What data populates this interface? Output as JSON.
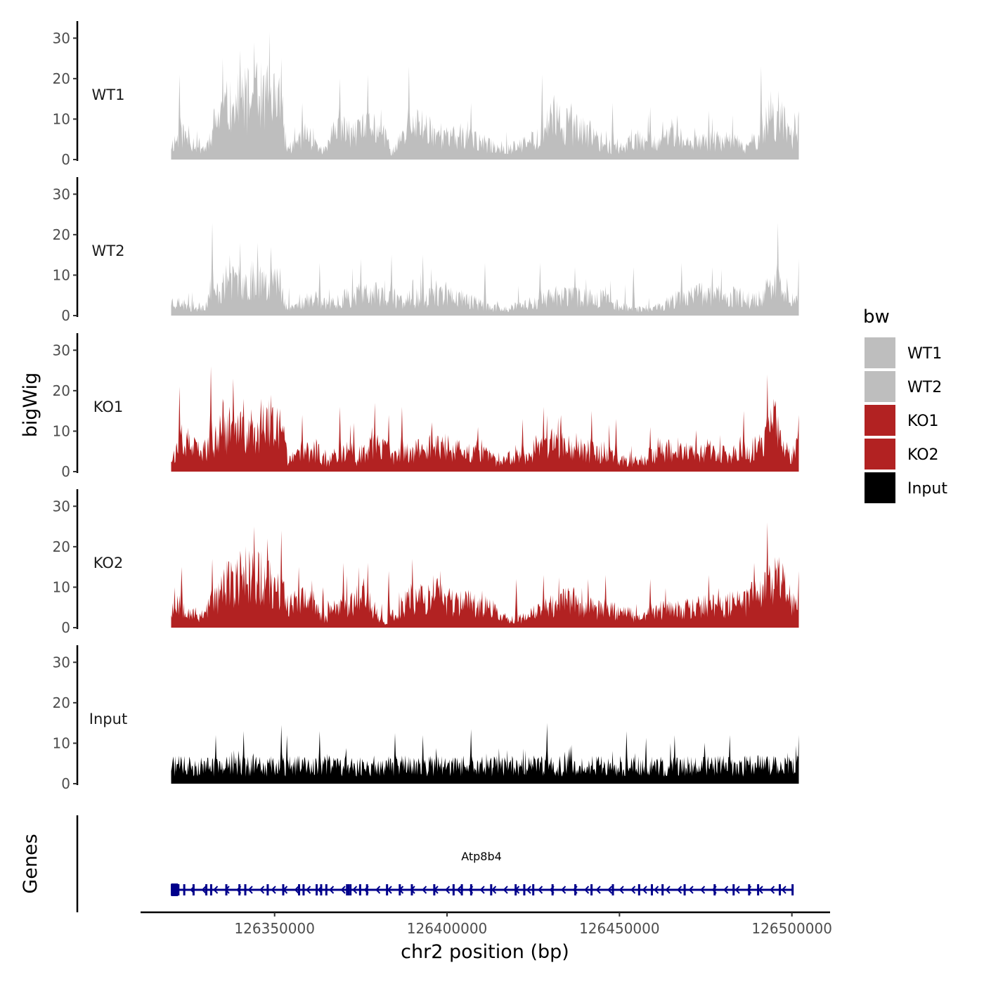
{
  "chart_data": {
    "type": "area",
    "title": "",
    "xlabel": "chr2 position (bp)",
    "ylabel": "bigWig",
    "genes_ylabel": "Genes",
    "xlim": [
      126316000,
      126512000
    ],
    "x_ticks": [
      126350000,
      126400000,
      126450000,
      126500000
    ],
    "x_tick_labels": [
      "126350000",
      "126400000",
      "126450000",
      "126500000"
    ],
    "data_range": [
      126320000,
      126502000
    ],
    "ylim": [
      0,
      33
    ],
    "y_ticks": [
      0,
      10,
      20,
      30
    ],
    "y_tick_labels": [
      "0",
      "10",
      "20",
      "30"
    ],
    "legend": {
      "title": "bw",
      "position": "right",
      "entries": [
        {
          "label": "WT1",
          "color": "#BEBEBE"
        },
        {
          "label": "WT2",
          "color": "#BEBEBE"
        },
        {
          "label": "KO1",
          "color": "#B22222"
        },
        {
          "label": "KO2",
          "color": "#B22222"
        },
        {
          "label": "Input",
          "color": "#000000"
        }
      ]
    },
    "series": [
      {
        "name": "WT1",
        "color": "#BEBEBE",
        "seed": 11,
        "profile_x": [
          126320000,
          126323000,
          126326000,
          126330000,
          126333000,
          126337000,
          126341000,
          126345000,
          126349000,
          126352000,
          126353500,
          126356000,
          126358000,
          126361000,
          126364000,
          126367000,
          126370000,
          126374000,
          126378000,
          126382000,
          126384000,
          126388000,
          126392000,
          126396000,
          126400000,
          126406000,
          126412000,
          126418000,
          126422000,
          126426000,
          126430000,
          126434000,
          126438000,
          126442000,
          126446000,
          126450000,
          126455000,
          126460000,
          126465000,
          126470000,
          126476000,
          126482000,
          126486000,
          126490000,
          126494000,
          126497000,
          126500000,
          126502000
        ],
        "profile_y": [
          4,
          7,
          5,
          3,
          11,
          15,
          16,
          17,
          18,
          14,
          3,
          4,
          7,
          6,
          2,
          7,
          8,
          7,
          10,
          6,
          2,
          7,
          10,
          8,
          6,
          6,
          4,
          3,
          4,
          6,
          11,
          10,
          8,
          7,
          4,
          3,
          6,
          5,
          6,
          4,
          5,
          6,
          3,
          6,
          12,
          11,
          6,
          8
        ],
        "peaks": [
          [
            126322500,
            21
          ],
          [
            126335000,
            25
          ],
          [
            126340000,
            27
          ],
          [
            126344000,
            29
          ],
          [
            126348500,
            31.5
          ],
          [
            126352000,
            25
          ],
          [
            126358000,
            14
          ],
          [
            126369000,
            20
          ],
          [
            126377000,
            21
          ],
          [
            126389000,
            23
          ],
          [
            126407000,
            14
          ],
          [
            126427500,
            21
          ],
          [
            126431000,
            16
          ],
          [
            126436000,
            14
          ],
          [
            126448000,
            14
          ],
          [
            126459000,
            13
          ],
          [
            126476000,
            12
          ],
          [
            126491000,
            23
          ],
          [
            126494000,
            17
          ],
          [
            126502000,
            12
          ]
        ]
      },
      {
        "name": "WT2",
        "color": "#BEBEBE",
        "seed": 23,
        "profile_x": [
          126320000,
          126324000,
          126327000,
          126330000,
          126333000,
          126336000,
          126340000,
          126344000,
          126348000,
          126352000,
          126353500,
          126357000,
          126362000,
          126366000,
          126370000,
          126375000,
          126380000,
          126386000,
          126392000,
          126398000,
          126404000,
          126410000,
          126414000,
          126418000,
          126422000,
          126427000,
          126433000,
          126438000,
          126444000,
          126450000,
          126455000,
          126460000,
          126466000,
          126472000,
          126478000,
          126484000,
          126489000,
          126493000,
          126496000,
          126500000,
          126502000
        ],
        "profile_y": [
          4,
          3,
          2,
          3,
          6,
          9,
          9,
          10,
          10,
          9,
          2,
          3,
          5,
          3,
          5,
          6,
          6,
          4,
          5,
          6,
          5,
          3,
          2,
          2,
          3,
          4,
          6,
          5,
          5,
          3,
          2,
          2,
          4,
          6,
          6,
          5,
          4,
          7,
          8,
          6,
          7
        ],
        "peaks": [
          [
            126332000,
            23
          ],
          [
            126337000,
            15
          ],
          [
            126340000,
            18
          ],
          [
            126345000,
            18
          ],
          [
            126349000,
            17
          ],
          [
            126363000,
            13
          ],
          [
            126375000,
            14
          ],
          [
            126384000,
            15
          ],
          [
            126393000,
            15
          ],
          [
            126411000,
            13
          ],
          [
            126427000,
            13
          ],
          [
            126437000,
            12
          ],
          [
            126454000,
            12
          ],
          [
            126468000,
            13
          ],
          [
            126477000,
            12
          ],
          [
            126496000,
            23
          ],
          [
            126502000,
            14
          ]
        ]
      },
      {
        "name": "KO1",
        "color": "#B22222",
        "seed": 37,
        "profile_x": [
          126320000,
          126322000,
          126325000,
          126328000,
          126331000,
          126334000,
          126337000,
          126341000,
          126345000,
          126349000,
          126352000,
          126354000,
          126358000,
          126362000,
          126365000,
          126368000,
          126371000,
          126374000,
          126378000,
          126382000,
          126385000,
          126390000,
          126395000,
          126400000,
          126405000,
          126410000,
          126414000,
          126419000,
          126424000,
          126429000,
          126433000,
          126438000,
          126443000,
          126447000,
          126450000,
          126455000,
          126460000,
          126465000,
          126470000,
          126476000,
          126482000,
          126488000,
          126492000,
          126495000,
          126497000,
          126500000,
          126502000
        ],
        "profile_y": [
          4,
          6,
          8,
          5,
          7,
          9,
          12,
          10,
          12,
          12,
          11,
          3,
          5,
          6,
          3,
          4,
          7,
          3,
          7,
          6,
          4,
          6,
          7,
          7,
          5,
          6,
          3,
          4,
          5,
          7,
          9,
          7,
          5,
          6,
          3,
          3,
          5,
          6,
          5,
          6,
          4,
          5,
          9,
          14,
          7,
          5,
          8
        ],
        "peaks": [
          [
            126322500,
            21
          ],
          [
            126331500,
            26
          ],
          [
            126335000,
            18
          ],
          [
            126338000,
            23
          ],
          [
            126341000,
            18
          ],
          [
            126346000,
            18
          ],
          [
            126349000,
            19
          ],
          [
            126358000,
            14
          ],
          [
            126369000,
            16
          ],
          [
            126373000,
            12
          ],
          [
            126379000,
            17
          ],
          [
            126383000,
            14
          ],
          [
            126387000,
            16
          ],
          [
            126409000,
            11
          ],
          [
            126422000,
            13
          ],
          [
            126428000,
            16
          ],
          [
            126433000,
            14
          ],
          [
            126442000,
            15
          ],
          [
            126449000,
            13
          ],
          [
            126459000,
            11
          ],
          [
            126486000,
            15
          ],
          [
            126493000,
            24
          ],
          [
            126502000,
            14
          ]
        ]
      },
      {
        "name": "KO2",
        "color": "#B22222",
        "seed": 53,
        "profile_x": [
          126320000,
          126322000,
          126325000,
          126328000,
          126332000,
          126336000,
          126340000,
          126344000,
          126348000,
          126352000,
          126355000,
          126358000,
          126362000,
          126364000,
          126368000,
          126372000,
          126376000,
          126379000,
          126382000,
          126386000,
          126390000,
          126394000,
          126398000,
          126402000,
          126407000,
          126412000,
          126416000,
          126420000,
          126425000,
          126429000,
          126433000,
          126438000,
          126443000,
          126447000,
          126452000,
          126457000,
          126462000,
          126468000,
          126474000,
          126480000,
          126486000,
          126490000,
          126494000,
          126497000,
          126500000,
          126502000
        ],
        "profile_y": [
          5,
          8,
          5,
          3,
          7,
          12,
          13,
          15,
          13,
          9,
          7,
          8,
          6,
          2,
          6,
          7,
          9,
          5,
          1,
          5,
          9,
          8,
          9,
          7,
          7,
          6,
          3,
          2,
          4,
          6,
          8,
          7,
          5,
          5,
          4,
          3,
          5,
          5,
          6,
          6,
          7,
          9,
          15,
          13,
          6,
          7
        ],
        "peaks": [
          [
            126323000,
            15
          ],
          [
            126332000,
            17
          ],
          [
            126340000,
            19
          ],
          [
            126344000,
            25
          ],
          [
            126348000,
            22
          ],
          [
            126352000,
            24
          ],
          [
            126357000,
            15
          ],
          [
            126364000,
            10
          ],
          [
            126370000,
            16
          ],
          [
            126377000,
            16
          ],
          [
            126383000,
            14
          ],
          [
            126390000,
            17
          ],
          [
            126396000,
            13
          ],
          [
            126420000,
            12
          ],
          [
            126428000,
            13
          ],
          [
            126441000,
            12
          ],
          [
            126446000,
            13
          ],
          [
            126459000,
            12
          ],
          [
            126476000,
            13
          ],
          [
            126489000,
            16
          ],
          [
            126493000,
            26
          ],
          [
            126496000,
            17
          ],
          [
            126502000,
            14
          ]
        ]
      },
      {
        "name": "Input",
        "color": "#000000",
        "seed": 71,
        "profile_x": [
          126320000,
          126502000
        ],
        "profile_y": [
          5,
          5
        ],
        "peaks": [
          [
            126333000,
            12
          ],
          [
            126341000,
            13
          ],
          [
            126352000,
            14.5
          ],
          [
            126353500,
            12
          ],
          [
            126363000,
            13
          ],
          [
            126385000,
            12.5
          ],
          [
            126393000,
            12
          ],
          [
            126407000,
            13.5
          ],
          [
            126429000,
            15
          ],
          [
            126452000,
            13
          ],
          [
            126466000,
            12
          ],
          [
            126482000,
            12
          ],
          [
            126502000,
            12
          ]
        ]
      }
    ],
    "genes": [
      {
        "name": "Atp8b4",
        "start": 126320000,
        "end": 126500000,
        "strand": "-",
        "exons": [
          126320200,
          126322100,
          126323800,
          126326500,
          126330200,
          126331600,
          126336000,
          126339800,
          126341500,
          126348000,
          126352500,
          126357100,
          126358400,
          126362200,
          126363500,
          126365000,
          126371000,
          126371400,
          126372000,
          126374800,
          126376800,
          126382600,
          126386300,
          126389800,
          126396300,
          126401900,
          126404300,
          126407000,
          126412800,
          126419900,
          126422400,
          126425000,
          126430600,
          126437200,
          126441900,
          126448100,
          126455700,
          126459400,
          126462500,
          126468900,
          126477600,
          126483100,
          126487600,
          126490200,
          126496500,
          126500200
        ],
        "first_exon": [
          126320000,
          126322000
        ]
      }
    ]
  }
}
